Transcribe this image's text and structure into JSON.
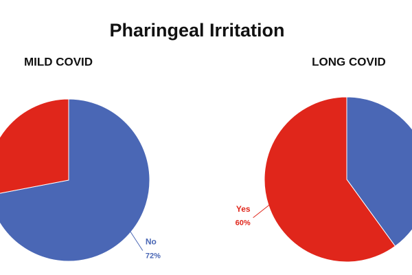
{
  "title": "Pharingeal Irritation",
  "chart_data": [
    {
      "type": "pie",
      "title": "MILD COVID",
      "categories": [
        "No",
        null
      ],
      "values": [
        72,
        28
      ],
      "value_labels": [
        "72%",
        null
      ],
      "colors": [
        "#4a67b5",
        "#e0261b"
      ]
    },
    {
      "type": "pie",
      "title": "LONG COVID",
      "categories": [
        null,
        "Yes"
      ],
      "values": [
        40,
        60
      ],
      "value_labels": [
        null,
        "60%"
      ],
      "colors": [
        "#4a67b5",
        "#e0261b"
      ]
    }
  ]
}
